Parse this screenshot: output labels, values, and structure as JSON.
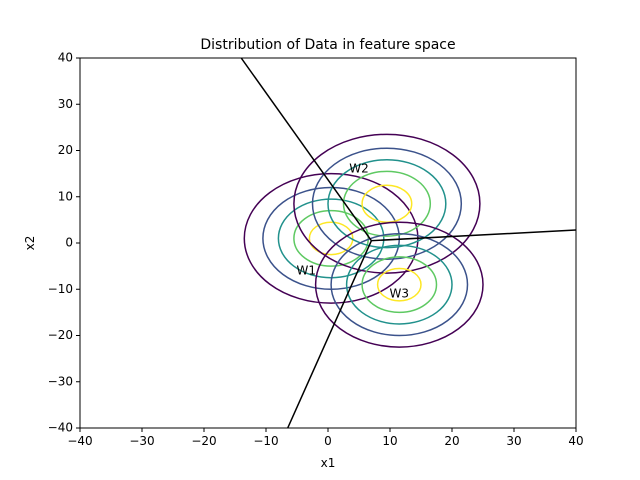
{
  "chart_data": {
    "type": "contour",
    "title": "Distribution of Data in feature space",
    "xlabel": "x1",
    "ylabel": "x2",
    "xlim": [
      -40,
      40
    ],
    "ylim": [
      -40,
      40
    ],
    "xticks": [
      -40,
      -30,
      -20,
      -10,
      0,
      10,
      20,
      30,
      40
    ],
    "yticks": [
      -40,
      -30,
      -20,
      -10,
      0,
      10,
      20,
      30,
      40
    ],
    "xtick_labels": [
      "−40",
      "−30",
      "−20",
      "−10",
      "0",
      "10",
      "20",
      "30",
      "40"
    ],
    "ytick_labels": [
      "−40",
      "−30",
      "−20",
      "−10",
      "0",
      "10",
      "20",
      "30",
      "40"
    ],
    "grid": false,
    "contour_colors": [
      "#440154",
      "#3b528b",
      "#21918c",
      "#5ec962",
      "#fde725"
    ],
    "clusters": [
      {
        "label": "W1",
        "center": [
          0.5,
          1.0
        ],
        "contour_radii": [
          14,
          11,
          8.5,
          6,
          3.5
        ],
        "label_at": [
          -3.5,
          -6
        ]
      },
      {
        "label": "W2",
        "center": [
          9.5,
          8.5
        ],
        "contour_radii": [
          15,
          12,
          9.5,
          7,
          4
        ],
        "label_at": [
          5,
          16
        ]
      },
      {
        "label": "W3",
        "center": [
          11.5,
          -9
        ],
        "contour_radii": [
          13.5,
          11,
          8.5,
          6,
          3.5
        ],
        "label_at": [
          11.5,
          -11
        ]
      }
    ],
    "decision_boundaries": [
      {
        "from": [
          7,
          0.5
        ],
        "to": [
          -14,
          40
        ]
      },
      {
        "from": [
          7,
          0.5
        ],
        "to": [
          40,
          2.8
        ]
      },
      {
        "from": [
          7,
          0.5
        ],
        "to": [
          -6.5,
          -40
        ]
      }
    ],
    "boundary_color": "#000000"
  }
}
